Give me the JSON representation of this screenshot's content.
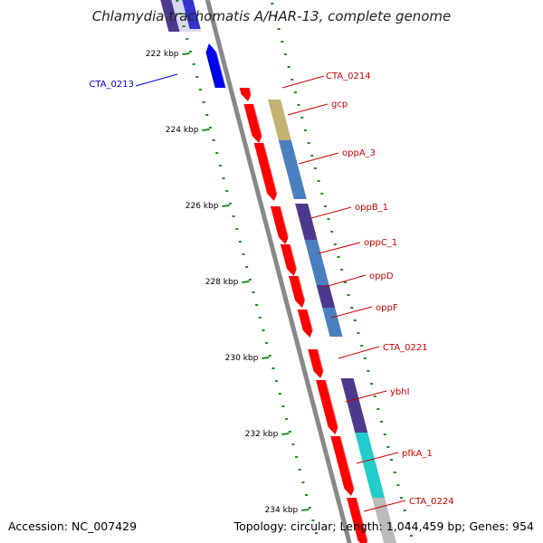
{
  "title": "Chlamydia trachomatis A/HAR-13, complete genome",
  "footer": {
    "accession": "Accession: NC_007429",
    "summary": "Topology: circular; Length: 1,044,459 bp; Genes: 954"
  },
  "ticks": [
    "222 kbp",
    "224 kbp",
    "226 kbp",
    "228 kbp",
    "230 kbp",
    "232 kbp",
    "234 kbp"
  ],
  "genes": [
    {
      "label": "CTA_0213",
      "strand": "minus"
    },
    {
      "label": "CTA_0214",
      "strand": "plus"
    },
    {
      "label": "gcp",
      "strand": "plus"
    },
    {
      "label": "oppA_3",
      "strand": "plus"
    },
    {
      "label": "oppB_1",
      "strand": "plus"
    },
    {
      "label": "oppC_1",
      "strand": "plus"
    },
    {
      "label": "oppD",
      "strand": "plus"
    },
    {
      "label": "oppF",
      "strand": "plus"
    },
    {
      "label": "CTA_0221",
      "strand": "plus"
    },
    {
      "label": "ybhI",
      "strand": "plus"
    },
    {
      "label": "pfkA_1",
      "strand": "plus"
    },
    {
      "label": "CTA_0224",
      "strand": "plus"
    }
  ],
  "colors": {
    "plus_strand": "#ff0000",
    "minus_strand": "#0000ee",
    "backbone": "#888888",
    "ticks": "#228b22",
    "cog_khaki": "#c2b373",
    "cog_steelblue": "#4a7fbf",
    "cog_indigo": "#4b3a8c",
    "cog_cyan": "#22cccc",
    "cog_grey": "#bbbbbb"
  }
}
